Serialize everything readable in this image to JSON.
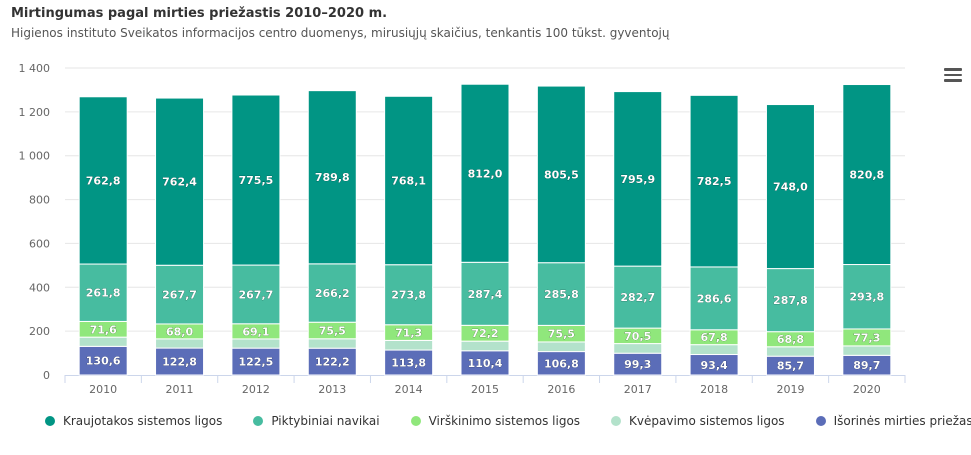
{
  "header": {
    "title": "Mirtingumas pagal mirties priežastis 2010–2020 m.",
    "subtitle": "Higienos instituto Sveikatos informacijos centro duomenys, mirusiųjų skaičius, tenkantis 100 tūkst. gyventojų"
  },
  "menu_icon": "hamburger-menu-icon",
  "chart_data": {
    "type": "bar",
    "stacked": true,
    "categories": [
      "2010",
      "2011",
      "2012",
      "2013",
      "2014",
      "2015",
      "2016",
      "2017",
      "2018",
      "2019",
      "2020"
    ],
    "ylim": [
      0,
      1400
    ],
    "yticks": [
      0,
      200,
      400,
      600,
      800,
      1000,
      1200,
      1400
    ],
    "ytick_labels": [
      "0",
      "200",
      "400",
      "600",
      "800",
      "1 000",
      "1 200",
      "1 400"
    ],
    "grid": true,
    "legend_position": "bottom",
    "series": [
      {
        "name": "Išorinės mirties priežastys",
        "color": "#5b6db8",
        "labels_shown": true,
        "values": [
          130.6,
          122.8,
          122.5,
          122.2,
          113.8,
          110.4,
          106.8,
          99.3,
          93.4,
          85.7,
          89.7
        ],
        "labels": [
          "130,6",
          "122,8",
          "122,5",
          "122,2",
          "113,8",
          "110,4",
          "106,8",
          "99,3",
          "93,4",
          "85,7",
          "89,7"
        ]
      },
      {
        "name": "Kvėpavimo sistemos ligos",
        "color": "#b3e2cb",
        "labels_shown": false,
        "values": [
          42,
          42,
          42,
          43,
          44,
          44,
          44,
          44,
          45,
          43,
          43
        ]
      },
      {
        "name": "Virškinimo sistemos ligos",
        "color": "#90e77c",
        "labels_shown": true,
        "values": [
          71.6,
          68.0,
          69.1,
          75.5,
          71.3,
          72.2,
          75.5,
          70.5,
          67.8,
          68.8,
          77.3
        ],
        "labels": [
          "71,6",
          "68,0",
          "69,1",
          "75,5",
          "71,3",
          "72,2",
          "75,5",
          "70,5",
          "67,8",
          "68,8",
          "77,3"
        ]
      },
      {
        "name": "Piktybiniai navikai",
        "color": "#47bca0",
        "labels_shown": true,
        "values": [
          261.8,
          267.7,
          267.7,
          266.2,
          273.8,
          287.4,
          285.8,
          282.7,
          286.6,
          287.8,
          293.8
        ],
        "labels": [
          "261,8",
          "267,7",
          "267,7",
          "266,2",
          "273,8",
          "287,4",
          "285,8",
          "282,7",
          "286,6",
          "287,8",
          "293,8"
        ]
      },
      {
        "name": "Kraujotakos sistemos ligos",
        "color": "#019584",
        "labels_shown": true,
        "values": [
          762.8,
          762.4,
          775.5,
          789.8,
          768.1,
          812.0,
          805.5,
          795.9,
          782.5,
          748.0,
          820.8
        ],
        "labels": [
          "762,8",
          "762,4",
          "775,5",
          "789,8",
          "768,1",
          "812,0",
          "805,5",
          "795,9",
          "782,5",
          "748,0",
          "820,8"
        ]
      }
    ],
    "legend_order": [
      "Kraujotakos sistemos ligos",
      "Piktybiniai navikai",
      "Virškinimo sistemos ligos",
      "Kvėpavimo sistemos ligos",
      "Išorinės mirties priežastys"
    ]
  }
}
